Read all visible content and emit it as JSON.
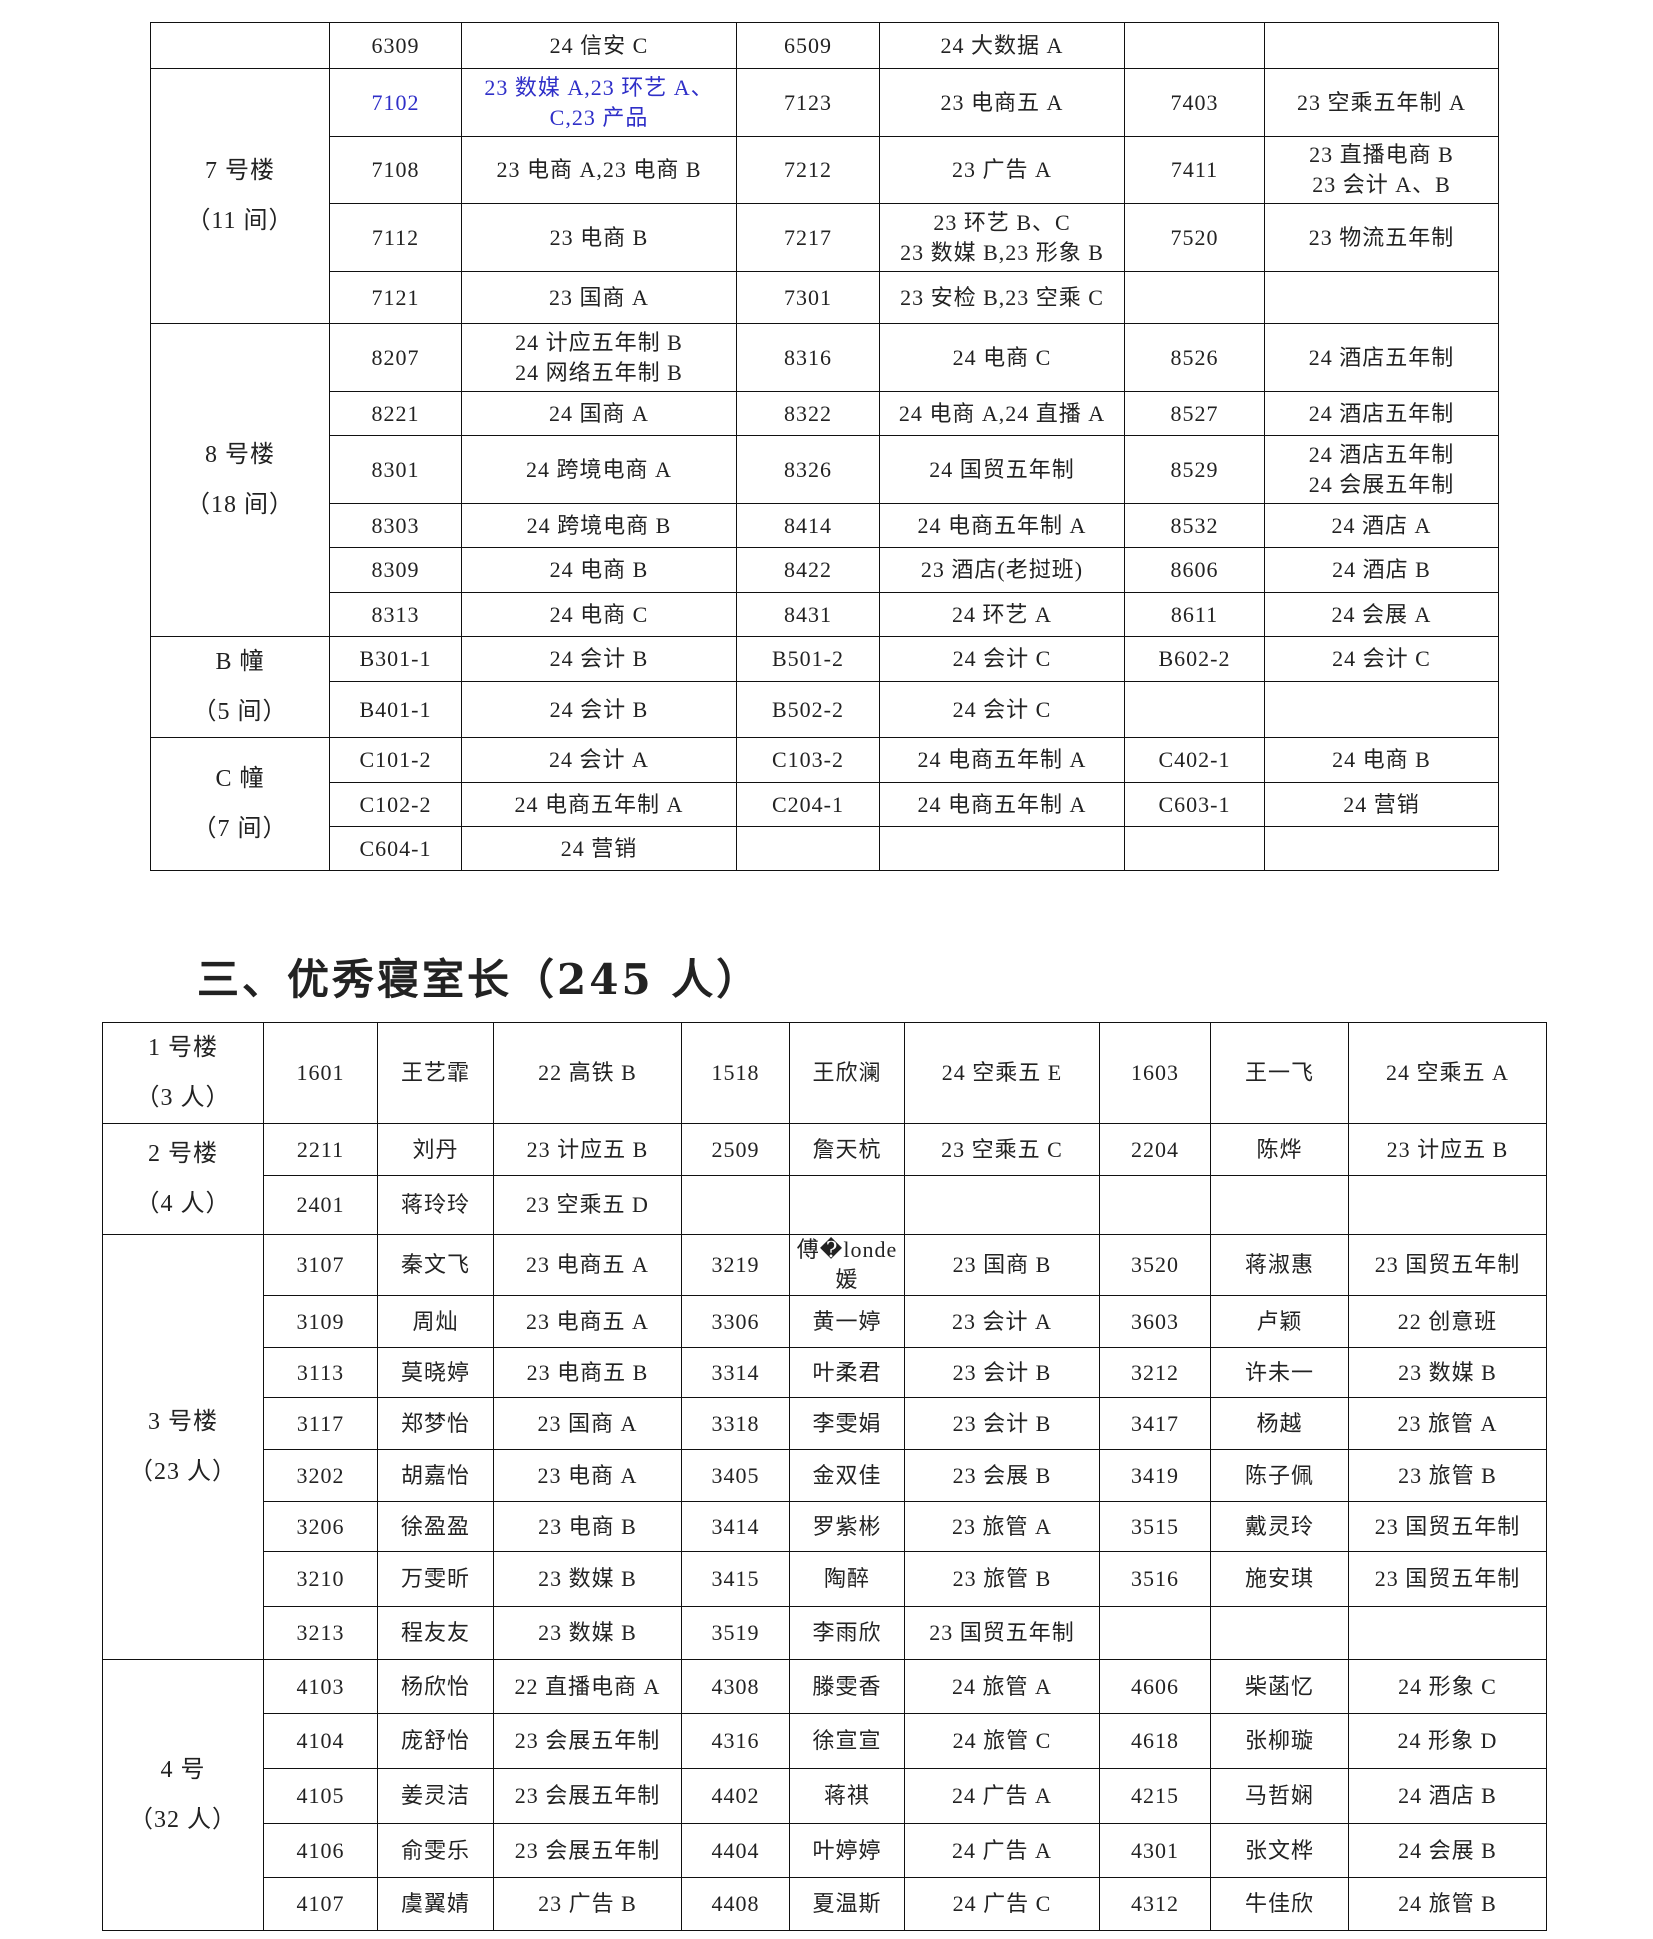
{
  "dorm_table": {
    "groups": [
      {
        "label": "",
        "rows": [
          [
            "6309",
            "24 信安 C",
            "6509",
            "24 大数据 A",
            "",
            ""
          ]
        ]
      },
      {
        "label": "7 号楼\n（11 间）",
        "rows": [
          [
            "7102",
            "23 数媒 A,23 环艺 A、\nC,23 产品",
            "7123",
            "23 电商五 A",
            "7403",
            "23 空乘五年制 A"
          ],
          [
            "7108",
            "23 电商 A,23 电商 B",
            "7212",
            "23 广告 A",
            "7411",
            "23 直播电商 B\n23 会计 A、B"
          ],
          [
            "7112",
            "23 电商 B",
            "7217",
            "23 环艺 B、C\n23 数媒 B,23 形象 B",
            "7520",
            "23 物流五年制"
          ],
          [
            "7121",
            "23 国商 A",
            "7301",
            "23 安检 B,23 空乘 C",
            "",
            ""
          ]
        ]
      },
      {
        "label": "8 号楼\n（18 间）",
        "rows": [
          [
            "8207",
            "24 计应五年制 B\n24 网络五年制 B",
            "8316",
            "24 电商 C",
            "8526",
            "24 酒店五年制"
          ],
          [
            "8221",
            "24 国商 A",
            "8322",
            "24 电商 A,24 直播 A",
            "8527",
            "24 酒店五年制"
          ],
          [
            "8301",
            "24 跨境电商 A",
            "8326",
            "24 国贸五年制",
            "8529",
            "24 酒店五年制\n24 会展五年制"
          ],
          [
            "8303",
            "24 跨境电商 B",
            "8414",
            "24 电商五年制 A",
            "8532",
            "24 酒店 A"
          ],
          [
            "8309",
            "24 电商 B",
            "8422",
            "23 酒店(老挝班)",
            "8606",
            "24 酒店 B"
          ],
          [
            "8313",
            "24 电商 C",
            "8431",
            "24 环艺 A",
            "8611",
            "24 会展 A"
          ]
        ]
      },
      {
        "label": "B 幢\n（5 间）",
        "rows": [
          [
            "B301-1",
            "24 会计 B",
            "B501-2",
            "24 会计 C",
            "B602-2",
            "24 会计 C"
          ],
          [
            "B401-1",
            "24 会计 B",
            "B502-2",
            "24 会计 C",
            "",
            ""
          ]
        ]
      },
      {
        "label": "C 幢\n（7 间）",
        "rows": [
          [
            "C101-2",
            "24 会计 A",
            "C103-2",
            "24 电商五年制 A",
            "C402-1",
            "24 电商 B"
          ],
          [
            "C102-2",
            "24 电商五年制 A",
            "C204-1",
            "24 电商五年制 A",
            "C603-1",
            "24 营销"
          ],
          [
            "C604-1",
            "24 营销",
            "",
            "",
            "",
            ""
          ]
        ]
      }
    ],
    "highlight_color": "#2f2fc8",
    "highlighted_cells": [
      "1.0.0",
      "1.0.1"
    ]
  },
  "section_heading": "三、优秀寝室长（245 人）",
  "leader_table": {
    "groups": [
      {
        "label": "1 号楼\n（3 人）",
        "rows": [
          [
            "1601",
            "王艺霏",
            "22 高铁 B",
            "1518",
            "王欣澜",
            "24 空乘五 E",
            "1603",
            "王一飞",
            "24 空乘五 A"
          ]
        ]
      },
      {
        "label": "2 号楼\n（4 人）",
        "rows": [
          [
            "2211",
            "刘丹",
            "23 计应五 B",
            "2509",
            "詹天杭",
            "23 空乘五 C",
            "2204",
            "陈烨",
            "23 计应五 B"
          ],
          [
            "2401",
            "蒋玲玲",
            "23 空乘五 D",
            "",
            "",
            "",
            "",
            "",
            ""
          ]
        ]
      },
      {
        "label": "3 号楼\n（23 人）",
        "rows": [
          [
            "3107",
            "秦文飞",
            "23 电商五 A",
            "3219",
            "傅�londe媛",
            "23 国商 B",
            "3520",
            "蒋淑惠",
            "23 国贸五年制"
          ],
          [
            "3109",
            "周灿",
            "23 电商五 A",
            "3306",
            "黄一婷",
            "23 会计 A",
            "3603",
            "卢颖",
            "22 创意班"
          ],
          [
            "3113",
            "莫晓婷",
            "23 电商五 B",
            "3314",
            "叶柔君",
            "23 会计 B",
            "3212",
            "许未一",
            "23 数媒 B"
          ],
          [
            "3117",
            "郑梦怡",
            "23 国商 A",
            "3318",
            "李雯娟",
            "23 会计 B",
            "3417",
            "杨越",
            "23 旅管 A"
          ],
          [
            "3202",
            "胡嘉怡",
            "23 电商 A",
            "3405",
            "金双佳",
            "23 会展 B",
            "3419",
            "陈子佩",
            "23 旅管 B"
          ],
          [
            "3206",
            "徐盈盈",
            "23 电商 B",
            "3414",
            "罗紫彬",
            "23 旅管 A",
            "3515",
            "戴灵玲",
            "23 国贸五年制"
          ],
          [
            "3210",
            "万雯昕",
            "23 数媒 B",
            "3415",
            "陶醉",
            "23 旅管 B",
            "3516",
            "施安琪",
            "23 国贸五年制"
          ],
          [
            "3213",
            "程友友",
            "23 数媒 B",
            "3519",
            "李雨欣",
            "23 国贸五年制",
            "",
            "",
            ""
          ]
        ]
      },
      {
        "label": "4 号\n（32 人）",
        "rows": [
          [
            "4103",
            "杨欣怡",
            "22 直播电商 A",
            "4308",
            "滕雯香",
            "24 旅管 A",
            "4606",
            "柴菡忆",
            "24 形象 C"
          ],
          [
            "4104",
            "庞舒怡",
            "23 会展五年制",
            "4316",
            "徐宣宣",
            "24 旅管 C",
            "4618",
            "张柳璇",
            "24 形象 D"
          ],
          [
            "4105",
            "姜灵洁",
            "23 会展五年制",
            "4402",
            "蒋祺",
            "24 广告 A",
            "4215",
            "马哲娴",
            "24 酒店 B"
          ],
          [
            "4106",
            "俞雯乐",
            "23 会展五年制",
            "4404",
            "叶婷婷",
            "24 广告 A",
            "4301",
            "张文桦",
            "24 会展 B"
          ],
          [
            "4107",
            "虞翼婧",
            "23 广告 B",
            "4408",
            "夏温斯",
            "24 广告 C",
            "4312",
            "牛佳欣",
            "24 旅管 B"
          ]
        ]
      }
    ]
  }
}
